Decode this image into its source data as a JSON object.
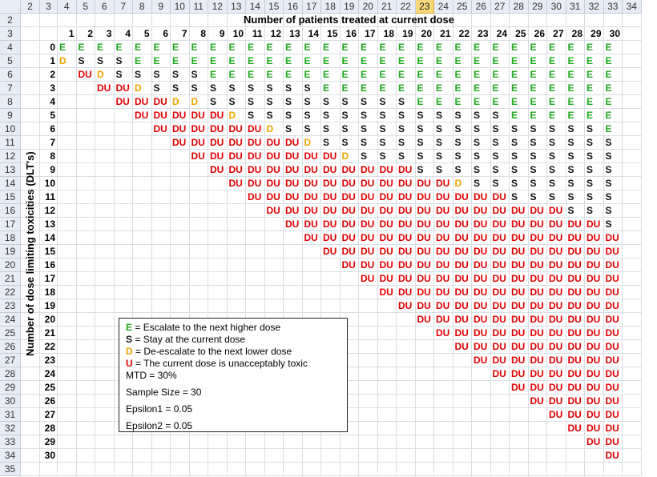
{
  "spreadsheet": {
    "column_headers": [
      "2",
      "3",
      "4",
      "5",
      "6",
      "7",
      "8",
      "9",
      "10",
      "11",
      "12",
      "13",
      "14",
      "15",
      "16",
      "17",
      "18",
      "19",
      "20",
      "21",
      "22",
      "23",
      "24",
      "25",
      "26",
      "27",
      "28",
      "29",
      "30",
      "31",
      "32",
      "33",
      "34"
    ],
    "active_column": "23",
    "row_headers": [
      "2",
      "3",
      "4",
      "5",
      "6",
      "7",
      "8",
      "9",
      "10",
      "11",
      "12",
      "13",
      "14",
      "15",
      "16",
      "17",
      "18",
      "19",
      "20",
      "21",
      "22",
      "23",
      "24",
      "25",
      "26",
      "27",
      "28",
      "29",
      "30",
      "31",
      "32",
      "33",
      "34",
      "35"
    ],
    "title": "Number of patients treated at current dose",
    "y_axis_label": "Number of dose limiting toxicities (DLT's)",
    "patient_numbers": [
      "1",
      "2",
      "3",
      "4",
      "5",
      "6",
      "7",
      "8",
      "9",
      "10",
      "11",
      "12",
      "13",
      "14",
      "15",
      "16",
      "17",
      "18",
      "19",
      "20",
      "21",
      "22",
      "23",
      "24",
      "25",
      "26",
      "27",
      "28",
      "29",
      "30"
    ],
    "dlt_numbers": [
      "0",
      "1",
      "2",
      "3",
      "4",
      "5",
      "6",
      "7",
      "8",
      "9",
      "10",
      "11",
      "12",
      "13",
      "14",
      "15",
      "16",
      "17",
      "18",
      "19",
      "20",
      "21",
      "22",
      "23",
      "24",
      "25",
      "26",
      "27",
      "28",
      "29",
      "30"
    ],
    "decision_rows": [
      [
        "E",
        "E",
        "E",
        "E",
        "E",
        "E",
        "E",
        "E",
        "E",
        "E",
        "E",
        "E",
        "E",
        "E",
        "E",
        "E",
        "E",
        "E",
        "E",
        "E",
        "E",
        "E",
        "E",
        "E",
        "E",
        "E",
        "E",
        "E",
        "E",
        "E"
      ],
      [
        "D",
        "S",
        "S",
        "S",
        "E",
        "E",
        "E",
        "E",
        "E",
        "E",
        "E",
        "E",
        "E",
        "E",
        "E",
        "E",
        "E",
        "E",
        "E",
        "E",
        "E",
        "E",
        "E",
        "E",
        "E",
        "E",
        "E",
        "E",
        "E",
        "E"
      ],
      [
        "",
        "DU",
        "D",
        "S",
        "S",
        "S",
        "S",
        "S",
        "E",
        "E",
        "E",
        "E",
        "E",
        "E",
        "E",
        "E",
        "E",
        "E",
        "E",
        "E",
        "E",
        "E",
        "E",
        "E",
        "E",
        "E",
        "E",
        "E",
        "E",
        "E"
      ],
      [
        "",
        "",
        "DU",
        "DU",
        "D",
        "S",
        "S",
        "S",
        "S",
        "S",
        "S",
        "S",
        "S",
        "S",
        "E",
        "E",
        "E",
        "E",
        "E",
        "E",
        "E",
        "E",
        "E",
        "E",
        "E",
        "E",
        "E",
        "E",
        "E",
        "E"
      ],
      [
        "",
        "",
        "",
        "DU",
        "DU",
        "DU",
        "D",
        "D",
        "S",
        "S",
        "S",
        "S",
        "S",
        "S",
        "S",
        "S",
        "S",
        "S",
        "S",
        "E",
        "E",
        "E",
        "E",
        "E",
        "E",
        "E",
        "E",
        "E",
        "E",
        "E"
      ],
      [
        "",
        "",
        "",
        "",
        "DU",
        "DU",
        "DU",
        "DU",
        "DU",
        "D",
        "S",
        "S",
        "S",
        "S",
        "S",
        "S",
        "S",
        "S",
        "S",
        "S",
        "S",
        "S",
        "S",
        "S",
        "E",
        "E",
        "E",
        "E",
        "E",
        "E"
      ],
      [
        "",
        "",
        "",
        "",
        "",
        "DU",
        "DU",
        "DU",
        "DU",
        "DU",
        "DU",
        "D",
        "S",
        "S",
        "S",
        "S",
        "S",
        "S",
        "S",
        "S",
        "S",
        "S",
        "S",
        "S",
        "S",
        "S",
        "S",
        "S",
        "S",
        "E"
      ],
      [
        "",
        "",
        "",
        "",
        "",
        "",
        "DU",
        "DU",
        "DU",
        "DU",
        "DU",
        "DU",
        "DU",
        "D",
        "S",
        "S",
        "S",
        "S",
        "S",
        "S",
        "S",
        "S",
        "S",
        "S",
        "S",
        "S",
        "S",
        "S",
        "S",
        "S"
      ],
      [
        "",
        "",
        "",
        "",
        "",
        "",
        "",
        "DU",
        "DU",
        "DU",
        "DU",
        "DU",
        "DU",
        "DU",
        "DU",
        "D",
        "S",
        "S",
        "S",
        "S",
        "S",
        "S",
        "S",
        "S",
        "S",
        "S",
        "S",
        "S",
        "S",
        "S"
      ],
      [
        "",
        "",
        "",
        "",
        "",
        "",
        "",
        "",
        "DU",
        "DU",
        "DU",
        "DU",
        "DU",
        "DU",
        "DU",
        "DU",
        "DU",
        "DU",
        "DU",
        "S",
        "S",
        "S",
        "S",
        "S",
        "S",
        "S",
        "S",
        "S",
        "S",
        "S"
      ],
      [
        "",
        "",
        "",
        "",
        "",
        "",
        "",
        "",
        "",
        "DU",
        "DU",
        "DU",
        "DU",
        "DU",
        "DU",
        "DU",
        "DU",
        "DU",
        "DU",
        "DU",
        "DU",
        "D",
        "S",
        "S",
        "S",
        "S",
        "S",
        "S",
        "S",
        "S"
      ],
      [
        "",
        "",
        "",
        "",
        "",
        "",
        "",
        "",
        "",
        "",
        "DU",
        "DU",
        "DU",
        "DU",
        "DU",
        "DU",
        "DU",
        "DU",
        "DU",
        "DU",
        "DU",
        "DU",
        "DU",
        "DU",
        "S",
        "S",
        "S",
        "S",
        "S",
        "S"
      ],
      [
        "",
        "",
        "",
        "",
        "",
        "",
        "",
        "",
        "",
        "",
        "",
        "DU",
        "DU",
        "DU",
        "DU",
        "DU",
        "DU",
        "DU",
        "DU",
        "DU",
        "DU",
        "DU",
        "DU",
        "DU",
        "DU",
        "DU",
        "DU",
        "S",
        "S",
        "S"
      ],
      [
        "",
        "",
        "",
        "",
        "",
        "",
        "",
        "",
        "",
        "",
        "",
        "",
        "DU",
        "DU",
        "DU",
        "DU",
        "DU",
        "DU",
        "DU",
        "DU",
        "DU",
        "DU",
        "DU",
        "DU",
        "DU",
        "DU",
        "DU",
        "DU",
        "DU",
        "S"
      ],
      [
        "",
        "",
        "",
        "",
        "",
        "",
        "",
        "",
        "",
        "",
        "",
        "",
        "",
        "DU",
        "DU",
        "DU",
        "DU",
        "DU",
        "DU",
        "DU",
        "DU",
        "DU",
        "DU",
        "DU",
        "DU",
        "DU",
        "DU",
        "DU",
        "DU",
        "DU"
      ],
      [
        "",
        "",
        "",
        "",
        "",
        "",
        "",
        "",
        "",
        "",
        "",
        "",
        "",
        "",
        "DU",
        "DU",
        "DU",
        "DU",
        "DU",
        "DU",
        "DU",
        "DU",
        "DU",
        "DU",
        "DU",
        "DU",
        "DU",
        "DU",
        "DU",
        "DU"
      ],
      [
        "",
        "",
        "",
        "",
        "",
        "",
        "",
        "",
        "",
        "",
        "",
        "",
        "",
        "",
        "",
        "DU",
        "DU",
        "DU",
        "DU",
        "DU",
        "DU",
        "DU",
        "DU",
        "DU",
        "DU",
        "DU",
        "DU",
        "DU",
        "DU",
        "DU"
      ],
      [
        "",
        "",
        "",
        "",
        "",
        "",
        "",
        "",
        "",
        "",
        "",
        "",
        "",
        "",
        "",
        "",
        "DU",
        "DU",
        "DU",
        "DU",
        "DU",
        "DU",
        "DU",
        "DU",
        "DU",
        "DU",
        "DU",
        "DU",
        "DU",
        "DU"
      ],
      [
        "",
        "",
        "",
        "",
        "",
        "",
        "",
        "",
        "",
        "",
        "",
        "",
        "",
        "",
        "",
        "",
        "",
        "DU",
        "DU",
        "DU",
        "DU",
        "DU",
        "DU",
        "DU",
        "DU",
        "DU",
        "DU",
        "DU",
        "DU",
        "DU"
      ],
      [
        "",
        "",
        "",
        "",
        "",
        "",
        "",
        "",
        "",
        "",
        "",
        "",
        "",
        "",
        "",
        "",
        "",
        "",
        "DU",
        "DU",
        "DU",
        "DU",
        "DU",
        "DU",
        "DU",
        "DU",
        "DU",
        "DU",
        "DU",
        "DU"
      ],
      [
        "",
        "",
        "",
        "",
        "",
        "",
        "",
        "",
        "",
        "",
        "",
        "",
        "",
        "",
        "",
        "",
        "",
        "",
        "",
        "DU",
        "DU",
        "DU",
        "DU",
        "DU",
        "DU",
        "DU",
        "DU",
        "DU",
        "DU",
        "DU"
      ],
      [
        "",
        "",
        "",
        "",
        "",
        "",
        "",
        "",
        "",
        "",
        "",
        "",
        "",
        "",
        "",
        "",
        "",
        "",
        "",
        "",
        "DU",
        "DU",
        "DU",
        "DU",
        "DU",
        "DU",
        "DU",
        "DU",
        "DU",
        "DU"
      ],
      [
        "",
        "",
        "",
        "",
        "",
        "",
        "",
        "",
        "",
        "",
        "",
        "",
        "",
        "",
        "",
        "",
        "",
        "",
        "",
        "",
        "",
        "DU",
        "DU",
        "DU",
        "DU",
        "DU",
        "DU",
        "DU",
        "DU",
        "DU"
      ],
      [
        "",
        "",
        "",
        "",
        "",
        "",
        "",
        "",
        "",
        "",
        "",
        "",
        "",
        "",
        "",
        "",
        "",
        "",
        "",
        "",
        "",
        "",
        "DU",
        "DU",
        "DU",
        "DU",
        "DU",
        "DU",
        "DU",
        "DU"
      ],
      [
        "",
        "",
        "",
        "",
        "",
        "",
        "",
        "",
        "",
        "",
        "",
        "",
        "",
        "",
        "",
        "",
        "",
        "",
        "",
        "",
        "",
        "",
        "",
        "DU",
        "DU",
        "DU",
        "DU",
        "DU",
        "DU",
        "DU"
      ],
      [
        "",
        "",
        "",
        "",
        "",
        "",
        "",
        "",
        "",
        "",
        "",
        "",
        "",
        "",
        "",
        "",
        "",
        "",
        "",
        "",
        "",
        "",
        "",
        "",
        "DU",
        "DU",
        "DU",
        "DU",
        "DU",
        "DU"
      ],
      [
        "",
        "",
        "",
        "",
        "",
        "",
        "",
        "",
        "",
        "",
        "",
        "",
        "",
        "",
        "",
        "",
        "",
        "",
        "",
        "",
        "",
        "",
        "",
        "",
        "",
        "DU",
        "DU",
        "DU",
        "DU",
        "DU"
      ],
      [
        "",
        "",
        "",
        "",
        "",
        "",
        "",
        "",
        "",
        "",
        "",
        "",
        "",
        "",
        "",
        "",
        "",
        "",
        "",
        "",
        "",
        "",
        "",
        "",
        "",
        "",
        "DU",
        "DU",
        "DU",
        "DU"
      ],
      [
        "",
        "",
        "",
        "",
        "",
        "",
        "",
        "",
        "",
        "",
        "",
        "",
        "",
        "",
        "",
        "",
        "",
        "",
        "",
        "",
        "",
        "",
        "",
        "",
        "",
        "",
        "",
        "DU",
        "DU",
        "DU"
      ],
      [
        "",
        "",
        "",
        "",
        "",
        "",
        "",
        "",
        "",
        "",
        "",
        "",
        "",
        "",
        "",
        "",
        "",
        "",
        "",
        "",
        "",
        "",
        "",
        "",
        "",
        "",
        "",
        "",
        "DU",
        "DU"
      ],
      [
        "",
        "",
        "",
        "",
        "",
        "",
        "",
        "",
        "",
        "",
        "",
        "",
        "",
        "",
        "",
        "",
        "",
        "",
        "",
        "",
        "",
        "",
        "",
        "",
        "",
        "",
        "",
        "",
        "",
        "DU"
      ]
    ]
  },
  "legend": {
    "lines": [
      {
        "key": "E",
        "text": " = Escalate to the next higher dose",
        "color": "#1faa1f"
      },
      {
        "key": "S",
        "text": " = Stay at the current dose",
        "color": "#111111"
      },
      {
        "key": "D",
        "text": " = De-escalate to the next lower dose",
        "color": "#f0a500"
      },
      {
        "key": "U",
        "text": " = The  current dose is unacceptably toxic",
        "color": "#e00000"
      }
    ],
    "params": [
      "MTD  = 30%",
      "Sample Size = 30",
      "Epsilon1 = 0.05",
      "Epsilon2 = 0.05"
    ]
  },
  "colors": {
    "E": "#1faa1f",
    "S": "#111111",
    "D": "#f0a500",
    "DU": "#e00000",
    "header_bg": "#e8edf5",
    "active_header": "#f9d87a"
  }
}
